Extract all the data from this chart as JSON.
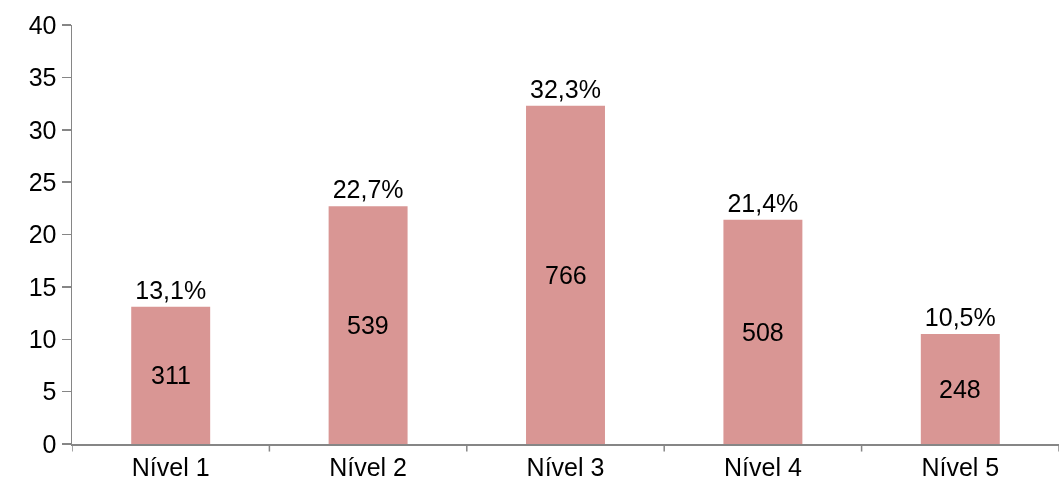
{
  "chart_data": {
    "type": "bar",
    "categories": [
      "Nível 1",
      "Nível 2",
      "Nível 3",
      "Nível 4",
      "Nível 5"
    ],
    "values": [
      13.1,
      22.7,
      32.3,
      21.4,
      10.5
    ],
    "value_labels": [
      "13,1%",
      "22,7%",
      "32,3%",
      "21,4%",
      "10,5%"
    ],
    "color": "#d99694",
    "ylim": [
      0,
      40
    ],
    "yticks": [
      0,
      5,
      10,
      15,
      20,
      25,
      30,
      35,
      40
    ],
    "grid": false,
    "annotations": [
      "311",
      "539",
      "766",
      "508",
      "248"
    ]
  }
}
